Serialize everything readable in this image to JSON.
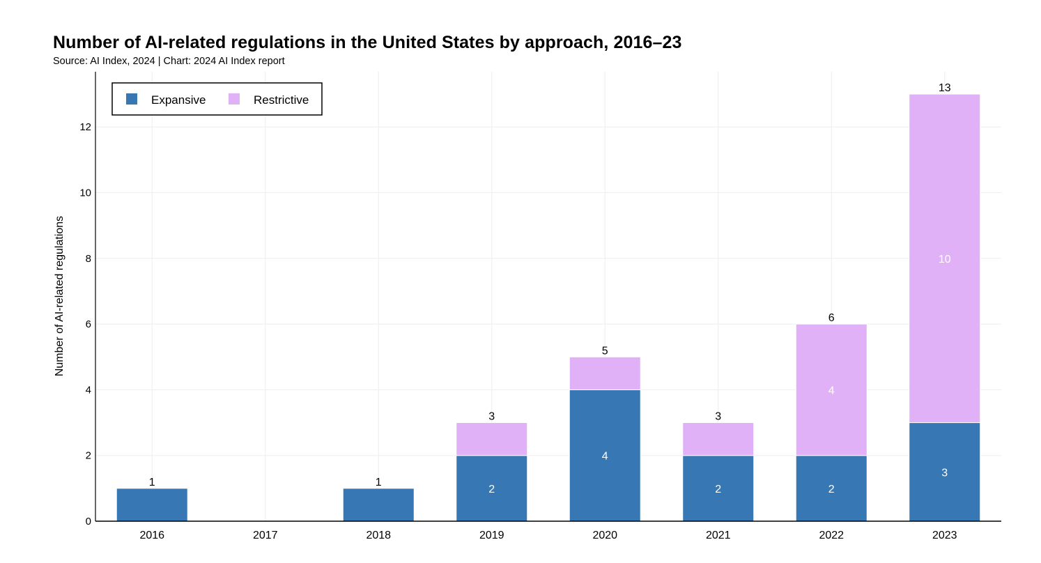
{
  "chart_data": {
    "type": "bar",
    "stacked": true,
    "title": "Number of AI-related regulations in the United States by approach, 2016–23",
    "subtitle": "Source: AI Index, 2024 | Chart: 2024 AI Index report",
    "xlabel": "",
    "ylabel": "Number of AI-related regulations",
    "ylim": [
      0,
      13.6
    ],
    "yticks": [
      0,
      2,
      4,
      6,
      8,
      10,
      12
    ],
    "grid": true,
    "legend_position": "top-left",
    "categories": [
      "2016",
      "2017",
      "2018",
      "2019",
      "2020",
      "2021",
      "2022",
      "2023"
    ],
    "series": [
      {
        "name": "Expansive",
        "color": "#3778b4",
        "values": [
          1,
          0,
          1,
          2,
          4,
          2,
          2,
          3
        ]
      },
      {
        "name": "Restrictive",
        "color": "#e0b1f7",
        "values": [
          0,
          0,
          0,
          1,
          1,
          1,
          4,
          10
        ]
      }
    ],
    "totals": [
      1,
      null,
      1,
      3,
      5,
      3,
      6,
      13
    ],
    "segment_labels": {
      "Expansive": [
        null,
        null,
        null,
        "2",
        "4",
        "2",
        "2",
        "3"
      ],
      "Restrictive": [
        null,
        null,
        null,
        null,
        null,
        null,
        "4",
        "10"
      ]
    }
  }
}
